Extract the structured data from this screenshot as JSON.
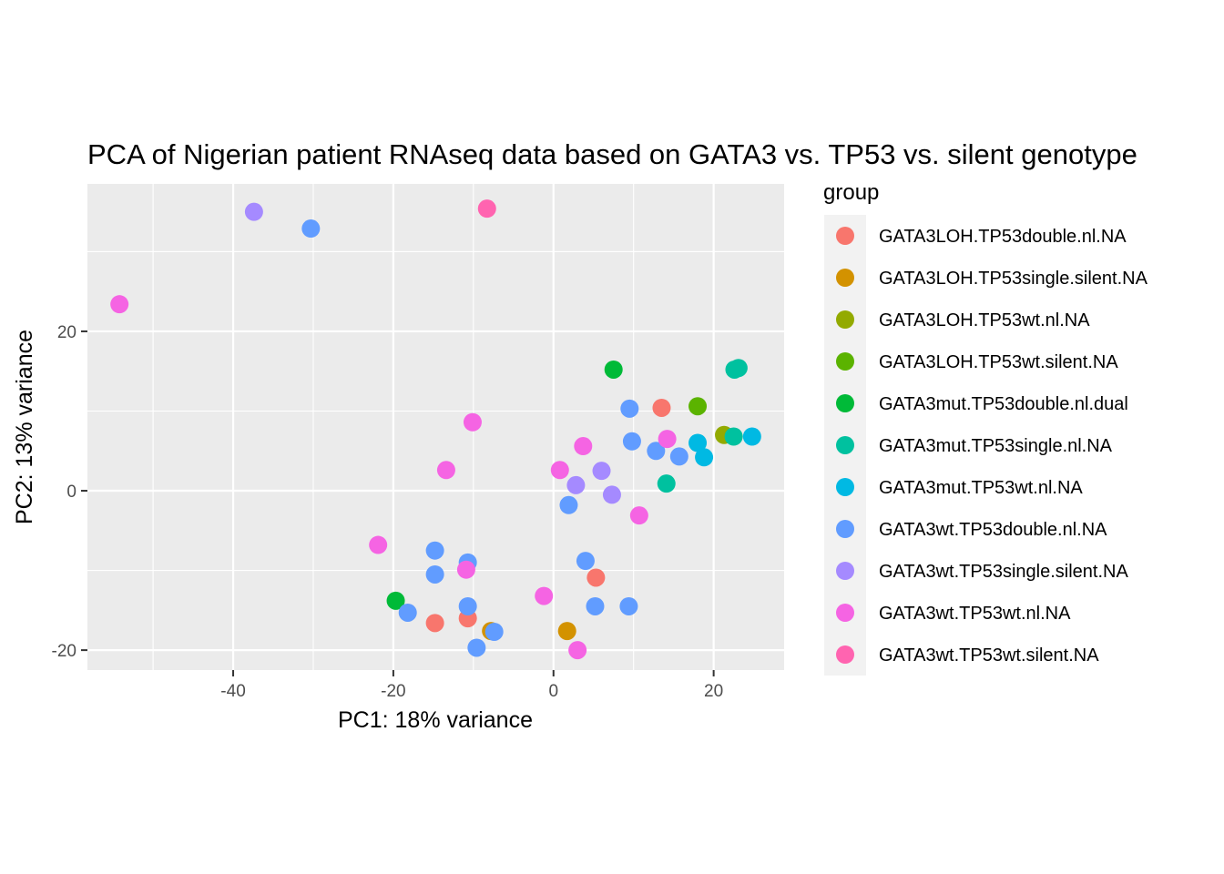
{
  "chart_data": {
    "type": "scatter",
    "title": "PCA of Nigerian patient RNAseq data based on GATA3 vs. TP53 vs. silent genotype",
    "xlabel": "PC1: 18% variance",
    "ylabel": "PC2: 13% variance",
    "xlim": [
      -58.2,
      28.8
    ],
    "ylim": [
      -22.5,
      38.5
    ],
    "x_ticks": [
      {
        "value": -40,
        "label": "-40"
      },
      {
        "value": -20,
        "label": "-20"
      },
      {
        "value": 0,
        "label": "0"
      },
      {
        "value": 20,
        "label": "20"
      }
    ],
    "y_ticks": [
      {
        "value": -20,
        "label": "-20"
      },
      {
        "value": 0,
        "label": "0"
      },
      {
        "value": 20,
        "label": "20"
      }
    ],
    "grid": true,
    "legend": {
      "title": "group",
      "position": "right"
    },
    "series": [
      {
        "name": "GATA3LOH.TP53double.nl.NA",
        "color": "#F8766D",
        "points": [
          [
            13.5,
            10.4
          ],
          [
            5.3,
            -10.9
          ],
          [
            -10.7,
            -16.0
          ],
          [
            -14.8,
            -16.6
          ]
        ]
      },
      {
        "name": "GATA3LOH.TP53single.silent.NA",
        "color": "#D39200",
        "points": [
          [
            1.7,
            -17.6
          ],
          [
            -7.8,
            -17.6
          ]
        ]
      },
      {
        "name": "GATA3LOH.TP53wt.nl.NA",
        "color": "#93AA00",
        "points": [
          [
            21.3,
            7.0
          ]
        ]
      },
      {
        "name": "GATA3LOH.TP53wt.silent.NA",
        "color": "#5BB300",
        "points": [
          [
            18.0,
            10.6
          ]
        ]
      },
      {
        "name": "GATA3mut.TP53double.nl.dual",
        "color": "#00BA38",
        "points": [
          [
            7.5,
            15.2
          ],
          [
            -19.7,
            -13.8
          ]
        ]
      },
      {
        "name": "GATA3mut.TP53single.nl.NA",
        "color": "#00C19F",
        "points": [
          [
            22.6,
            15.2
          ],
          [
            23.1,
            15.4
          ],
          [
            22.5,
            6.8
          ],
          [
            14.1,
            0.9
          ]
        ]
      },
      {
        "name": "GATA3mut.TP53wt.nl.NA",
        "color": "#00B9E3",
        "points": [
          [
            24.8,
            6.8
          ],
          [
            18.0,
            6.0
          ],
          [
            18.8,
            4.2
          ]
        ]
      },
      {
        "name": "GATA3wt.TP53double.nl.NA",
        "color": "#619CFF",
        "points": [
          [
            -30.3,
            32.9
          ],
          [
            9.5,
            10.3
          ],
          [
            9.8,
            6.2
          ],
          [
            12.8,
            5.0
          ],
          [
            15.7,
            4.3
          ],
          [
            1.9,
            -1.8
          ],
          [
            4.0,
            -8.8
          ],
          [
            -14.8,
            -7.5
          ],
          [
            -14.8,
            -10.5
          ],
          [
            -10.7,
            -9.0
          ],
          [
            -10.7,
            -14.5
          ],
          [
            -18.2,
            -15.3
          ],
          [
            5.2,
            -14.5
          ],
          [
            9.4,
            -14.5
          ],
          [
            -7.4,
            -17.7
          ],
          [
            -9.6,
            -19.7
          ]
        ]
      },
      {
        "name": "GATA3wt.TP53single.silent.NA",
        "color": "#A58AFF",
        "points": [
          [
            -37.4,
            35.0
          ],
          [
            2.8,
            0.7
          ],
          [
            6.0,
            2.5
          ],
          [
            7.3,
            -0.5
          ]
        ]
      },
      {
        "name": "GATA3wt.TP53wt.nl.NA",
        "color": "#F564E3",
        "points": [
          [
            -54.2,
            23.4
          ],
          [
            -10.1,
            8.6
          ],
          [
            -13.4,
            2.6
          ],
          [
            3.7,
            5.6
          ],
          [
            0.8,
            2.6
          ],
          [
            14.2,
            6.5
          ],
          [
            10.7,
            -3.1
          ],
          [
            -21.9,
            -6.8
          ],
          [
            -10.9,
            -9.9
          ],
          [
            -1.2,
            -13.2
          ],
          [
            3.0,
            -20.0
          ]
        ]
      },
      {
        "name": "GATA3wt.TP53wt.silent.NA",
        "color": "#FF64B0",
        "points": [
          [
            -8.3,
            35.4
          ]
        ]
      }
    ]
  }
}
